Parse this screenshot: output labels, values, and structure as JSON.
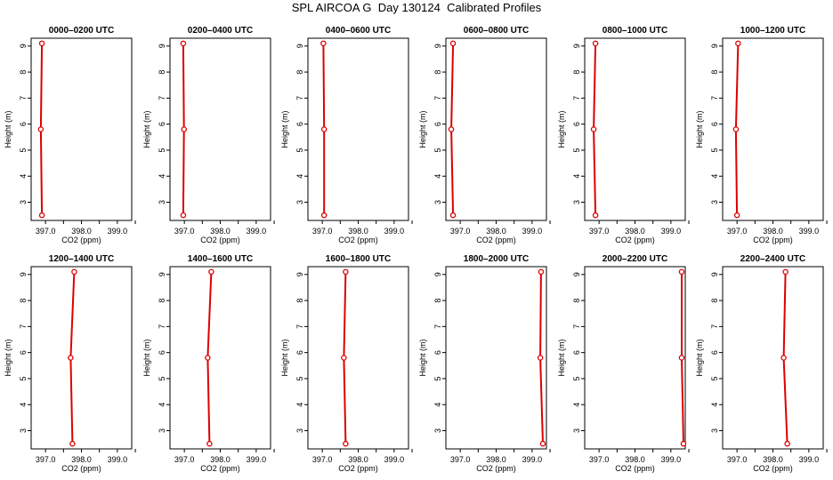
{
  "title": "SPL AIRCOA G  Day 130124  Calibrated Profiles",
  "line_color": "#dd0000",
  "chart_data": [
    {
      "type": "line",
      "title": "0000–0200 UTC",
      "xlabel": "CO2 (ppm)",
      "ylabel": "Height (m)",
      "xlim": [
        396.6,
        399.4
      ],
      "ylim": [
        2.3,
        9.3
      ],
      "x_ticks": [
        "397.0",
        "398.0",
        "399.0"
      ],
      "y_ticks": [
        "3",
        "4",
        "5",
        "6",
        "7",
        "8",
        "9"
      ],
      "series": [
        {
          "x": [
            396.9,
            396.87,
            396.9
          ],
          "y": [
            2.5,
            5.8,
            9.1
          ]
        }
      ]
    },
    {
      "type": "line",
      "title": "0200–0400 UTC",
      "xlabel": "CO2 (ppm)",
      "ylabel": "Height (m)",
      "xlim": [
        396.6,
        399.4
      ],
      "ylim": [
        2.3,
        9.3
      ],
      "x_ticks": [
        "397.0",
        "398.0",
        "399.0"
      ],
      "y_ticks": [
        "3",
        "4",
        "5",
        "6",
        "7",
        "8",
        "9"
      ],
      "series": [
        {
          "x": [
            396.97,
            396.99,
            396.97
          ],
          "y": [
            2.5,
            5.8,
            9.1
          ]
        }
      ]
    },
    {
      "type": "line",
      "title": "0400–0600 UTC",
      "xlabel": "CO2 (ppm)",
      "ylabel": "Height (m)",
      "xlim": [
        396.6,
        399.4
      ],
      "ylim": [
        2.3,
        9.3
      ],
      "x_ticks": [
        "397.0",
        "398.0",
        "399.0"
      ],
      "y_ticks": [
        "3",
        "4",
        "5",
        "6",
        "7",
        "8",
        "9"
      ],
      "series": [
        {
          "x": [
            397.05,
            397.05,
            397.03
          ],
          "y": [
            2.5,
            5.8,
            9.1
          ]
        }
      ]
    },
    {
      "type": "line",
      "title": "0600–0800 UTC",
      "xlabel": "CO2 (ppm)",
      "ylabel": "Height (m)",
      "xlim": [
        396.6,
        399.4
      ],
      "ylim": [
        2.3,
        9.3
      ],
      "x_ticks": [
        "397.0",
        "398.0",
        "399.0"
      ],
      "y_ticks": [
        "3",
        "4",
        "5",
        "6",
        "7",
        "8",
        "9"
      ],
      "series": [
        {
          "x": [
            396.8,
            396.75,
            396.8
          ],
          "y": [
            2.5,
            5.8,
            9.1
          ]
        }
      ]
    },
    {
      "type": "line",
      "title": "0800–1000 UTC",
      "xlabel": "CO2 (ppm)",
      "ylabel": "Height (m)",
      "xlim": [
        396.6,
        399.4
      ],
      "ylim": [
        2.3,
        9.3
      ],
      "x_ticks": [
        "397.0",
        "398.0",
        "399.0"
      ],
      "y_ticks": [
        "3",
        "4",
        "5",
        "6",
        "7",
        "8",
        "9"
      ],
      "series": [
        {
          "x": [
            396.9,
            396.85,
            396.9
          ],
          "y": [
            2.5,
            5.8,
            9.1
          ]
        }
      ]
    },
    {
      "type": "line",
      "title": "1000–1200 UTC",
      "xlabel": "CO2 (ppm)",
      "ylabel": "Height (m)",
      "xlim": [
        396.6,
        399.4
      ],
      "ylim": [
        2.3,
        9.3
      ],
      "x_ticks": [
        "397.0",
        "398.0",
        "399.0"
      ],
      "y_ticks": [
        "3",
        "4",
        "5",
        "6",
        "7",
        "8",
        "9"
      ],
      "series": [
        {
          "x": [
            397.0,
            396.97,
            397.03
          ],
          "y": [
            2.5,
            5.8,
            9.1
          ]
        }
      ]
    },
    {
      "type": "line",
      "title": "1200–1400 UTC",
      "xlabel": "CO2 (ppm)",
      "ylabel": "Height (m)",
      "xlim": [
        396.6,
        399.4
      ],
      "ylim": [
        2.3,
        9.3
      ],
      "x_ticks": [
        "397.0",
        "398.0",
        "399.0"
      ],
      "y_ticks": [
        "3",
        "4",
        "5",
        "6",
        "7",
        "8",
        "9"
      ],
      "series": [
        {
          "x": [
            397.75,
            397.7,
            397.8
          ],
          "y": [
            2.5,
            5.8,
            9.1
          ]
        }
      ]
    },
    {
      "type": "line",
      "title": "1400–1600 UTC",
      "xlabel": "CO2 (ppm)",
      "ylabel": "Height (m)",
      "xlim": [
        396.6,
        399.4
      ],
      "ylim": [
        2.3,
        9.3
      ],
      "x_ticks": [
        "397.0",
        "398.0",
        "399.0"
      ],
      "y_ticks": [
        "3",
        "4",
        "5",
        "6",
        "7",
        "8",
        "9"
      ],
      "series": [
        {
          "x": [
            397.7,
            397.65,
            397.75
          ],
          "y": [
            2.5,
            5.8,
            9.1
          ]
        }
      ]
    },
    {
      "type": "line",
      "title": "1600–1800 UTC",
      "xlabel": "CO2 (ppm)",
      "ylabel": "Height (m)",
      "xlim": [
        396.6,
        399.4
      ],
      "ylim": [
        2.3,
        9.3
      ],
      "x_ticks": [
        "397.0",
        "398.0",
        "399.0"
      ],
      "y_ticks": [
        "3",
        "4",
        "5",
        "6",
        "7",
        "8",
        "9"
      ],
      "series": [
        {
          "x": [
            397.65,
            397.6,
            397.65
          ],
          "y": [
            2.5,
            5.8,
            9.1
          ]
        }
      ]
    },
    {
      "type": "line",
      "title": "1800–2000 UTC",
      "xlabel": "CO2 (ppm)",
      "ylabel": "Height (m)",
      "xlim": [
        396.6,
        399.4
      ],
      "ylim": [
        2.3,
        9.3
      ],
      "x_ticks": [
        "397.0",
        "398.0",
        "399.0"
      ],
      "y_ticks": [
        "3",
        "4",
        "5",
        "6",
        "7",
        "8",
        "9"
      ],
      "series": [
        {
          "x": [
            399.3,
            399.23,
            399.25
          ],
          "y": [
            2.5,
            5.8,
            9.1
          ]
        }
      ]
    },
    {
      "type": "line",
      "title": "2000–2200 UTC",
      "xlabel": "CO2 (ppm)",
      "ylabel": "Height (m)",
      "xlim": [
        396.6,
        399.4
      ],
      "ylim": [
        2.3,
        9.3
      ],
      "x_ticks": [
        "397.0",
        "398.0",
        "399.0"
      ],
      "y_ticks": [
        "3",
        "4",
        "5",
        "6",
        "7",
        "8",
        "9"
      ],
      "series": [
        {
          "x": [
            399.35,
            399.3,
            399.3
          ],
          "y": [
            2.5,
            5.8,
            9.1
          ]
        }
      ]
    },
    {
      "type": "line",
      "title": "2200–2400 UTC",
      "xlabel": "CO2 (ppm)",
      "ylabel": "Height (m)",
      "xlim": [
        396.6,
        399.4
      ],
      "ylim": [
        2.3,
        9.3
      ],
      "x_ticks": [
        "397.0",
        "398.0",
        "399.0"
      ],
      "y_ticks": [
        "3",
        "4",
        "5",
        "6",
        "7",
        "8",
        "9"
      ],
      "series": [
        {
          "x": [
            398.4,
            398.3,
            398.35
          ],
          "y": [
            2.5,
            5.8,
            9.1
          ]
        }
      ]
    }
  ]
}
